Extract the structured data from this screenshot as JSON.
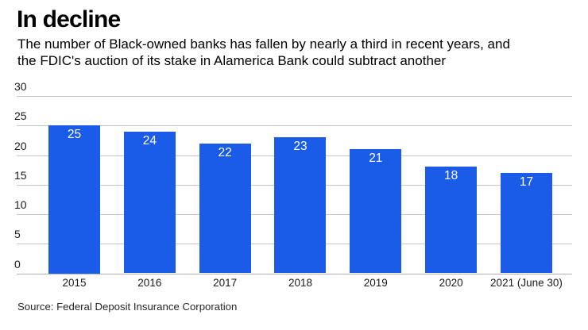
{
  "header": {
    "title": "In decline",
    "subtitle_lines": [
      "The number of Black-owned banks has fallen by nearly a third in recent years, and",
      "the FDIC's auction of its stake in Alamerica Bank could subtract another"
    ]
  },
  "chart_data": {
    "type": "bar",
    "title": "In decline",
    "subtitle": "The number of Black-owned banks has fallen by nearly a third in recent years, and the FDIC's auction of its stake in Alamerica Bank could subtract another",
    "categories": [
      "2015",
      "2016",
      "2017",
      "2018",
      "2019",
      "2020",
      "2021 (June 30)"
    ],
    "values": [
      25,
      24,
      22,
      23,
      21,
      18,
      17
    ],
    "xlabel": "",
    "ylabel": "",
    "ylim": [
      0,
      30
    ],
    "yticks": [
      0,
      5,
      10,
      15,
      20,
      25,
      30
    ],
    "grid": true,
    "legend_position": "none",
    "value_labels": "inside-top",
    "bar_color": "#1a5ce8",
    "value_label_color": "#ffffff",
    "axis_label_color": "#1a1a1a",
    "gridline_color": "#c6c6c6"
  },
  "source_note": "Source: Federal Deposit Insurance Corporation"
}
